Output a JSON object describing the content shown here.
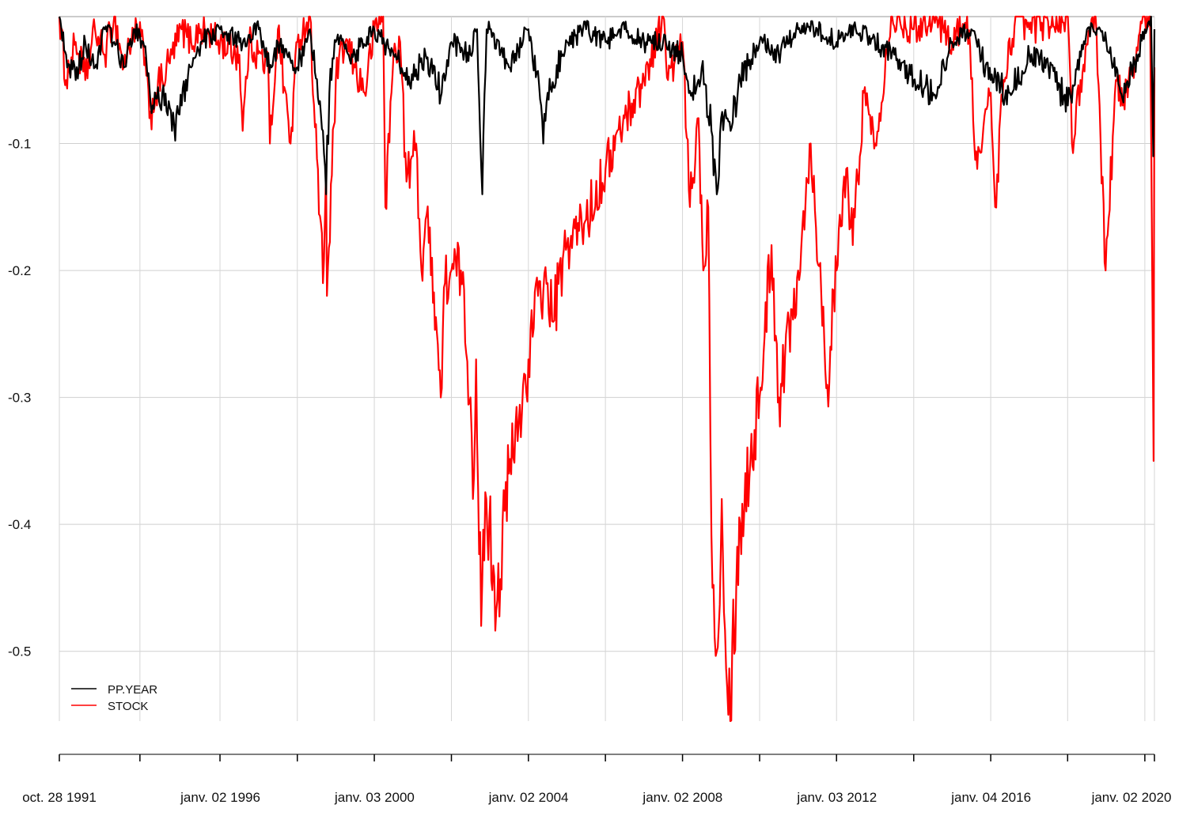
{
  "chart_data": {
    "type": "line",
    "title": "",
    "xlabel": "",
    "ylabel": "",
    "x_range": [
      "1991-10-28",
      "2020-03-31"
    ],
    "ylim": [
      -0.555,
      0
    ],
    "grid": true,
    "legend_position": "bottom-left",
    "y_ticks": [
      {
        "value": -0.1,
        "label": "-0.1"
      },
      {
        "value": -0.2,
        "label": "-0.2"
      },
      {
        "value": -0.3,
        "label": "-0.3"
      },
      {
        "value": -0.4,
        "label": "-0.4"
      },
      {
        "value": -0.5,
        "label": "-0.5"
      }
    ],
    "x_grid_dates": [
      "1991-10-28",
      "1993-11-30",
      "1995-12-29",
      "1997-12-31",
      "1999-12-31",
      "2001-12-31",
      "2003-12-31",
      "2005-12-30",
      "2007-12-31",
      "2009-12-31",
      "2011-12-30",
      "2013-12-31",
      "2015-12-31",
      "2017-12-29",
      "2019-12-31",
      "2020-03-31"
    ],
    "x_tick_labels": [
      {
        "date": "1991-10-28",
        "label": "oct. 28 1991"
      },
      {
        "date": "1996-01-02",
        "label": "janv. 02 1996"
      },
      {
        "date": "2000-01-03",
        "label": "janv. 03 2000"
      },
      {
        "date": "2004-01-02",
        "label": "janv. 02 2004"
      },
      {
        "date": "2008-01-02",
        "label": "janv. 02 2008"
      },
      {
        "date": "2012-01-03",
        "label": "janv. 03 2012"
      },
      {
        "date": "2016-01-04",
        "label": "janv. 04 2016"
      },
      {
        "date": "2020-01-02",
        "label": "janv. 02 2020"
      }
    ],
    "legend": [
      {
        "name": "PP.YEAR",
        "color": "#000000"
      },
      {
        "name": "STOCK",
        "color": "#ff0000"
      }
    ],
    "series": [
      {
        "name": "STOCK",
        "color": "#ff0000",
        "points": [
          [
            "1991-10-28",
            0
          ],
          [
            "1991-12-31",
            -0.05
          ],
          [
            "1992-03-31",
            -0.02
          ],
          [
            "1992-06-30",
            -0.05
          ],
          [
            "1992-09-30",
            -0.01
          ],
          [
            "1992-12-31",
            -0.03
          ],
          [
            "1993-03-31",
            0
          ],
          [
            "1993-06-30",
            -0.04
          ],
          [
            "1993-09-30",
            -0.01
          ],
          [
            "1993-12-31",
            -0.02
          ],
          [
            "1994-02-28",
            -0.08
          ],
          [
            "1994-04-30",
            -0.06
          ],
          [
            "1994-06-30",
            -0.05
          ],
          [
            "1994-09-30",
            -0.03
          ],
          [
            "1994-12-31",
            -0.01
          ],
          [
            "1995-03-31",
            -0.02
          ],
          [
            "1995-06-30",
            -0.01
          ],
          [
            "1995-12-31",
            -0.02
          ],
          [
            "1996-06-30",
            -0.03
          ],
          [
            "1996-07-31",
            -0.09
          ],
          [
            "1996-09-30",
            -0.02
          ],
          [
            "1997-03-31",
            -0.04
          ],
          [
            "1997-04-15",
            -0.1
          ],
          [
            "1997-06-30",
            -0.01
          ],
          [
            "1997-10-28",
            -0.1
          ],
          [
            "1997-12-31",
            -0.02
          ],
          [
            "1998-04-30",
            0
          ],
          [
            "1998-08-31",
            -0.21
          ],
          [
            "1998-09-30",
            -0.12
          ],
          [
            "1998-10-08",
            -0.22
          ],
          [
            "1998-12-31",
            -0.05
          ],
          [
            "1999-03-31",
            -0.02
          ],
          [
            "1999-06-30",
            -0.04
          ],
          [
            "1999-09-30",
            -0.06
          ],
          [
            "1999-12-31",
            -0.01
          ],
          [
            "2000-03-24",
            0
          ],
          [
            "2000-04-14",
            -0.15
          ],
          [
            "2000-06-30",
            -0.03
          ],
          [
            "2000-09-01",
            -0.02
          ],
          [
            "2000-10-31",
            -0.13
          ],
          [
            "2000-12-31",
            -0.11
          ],
          [
            "2001-01-31",
            -0.1
          ],
          [
            "2001-03-22",
            -0.2
          ],
          [
            "2001-04-30",
            -0.16
          ],
          [
            "2001-06-30",
            -0.19
          ],
          [
            "2001-09-21",
            -0.3
          ],
          [
            "2001-10-31",
            -0.21
          ],
          [
            "2001-12-31",
            -0.2
          ],
          [
            "2002-03-31",
            -0.2
          ],
          [
            "2002-06-30",
            -0.3
          ],
          [
            "2002-07-23",
            -0.38
          ],
          [
            "2002-08-22",
            -0.27
          ],
          [
            "2002-10-09",
            -0.48
          ],
          [
            "2002-11-27",
            -0.38
          ],
          [
            "2003-03-11",
            -0.46
          ],
          [
            "2003-06-30",
            -0.36
          ],
          [
            "2003-09-30",
            -0.32
          ],
          [
            "2003-12-31",
            -0.27
          ],
          [
            "2004-03-31",
            -0.22
          ],
          [
            "2004-06-30",
            -0.21
          ],
          [
            "2004-08-12",
            -0.24
          ],
          [
            "2004-12-31",
            -0.18
          ],
          [
            "2005-06-30",
            -0.16
          ],
          [
            "2005-12-31",
            -0.12
          ],
          [
            "2006-06-30",
            -0.08
          ],
          [
            "2006-12-31",
            -0.05
          ],
          [
            "2007-06-30",
            0
          ],
          [
            "2007-08-15",
            -0.05
          ],
          [
            "2007-12-31",
            -0.02
          ],
          [
            "2008-03-10",
            -0.15
          ],
          [
            "2008-05-31",
            -0.08
          ],
          [
            "2008-07-15",
            -0.2
          ],
          [
            "2008-08-31",
            -0.15
          ],
          [
            "2008-10-10",
            -0.45
          ],
          [
            "2008-11-20",
            -0.5
          ],
          [
            "2009-01-06",
            -0.38
          ],
          [
            "2009-03-09",
            -0.55
          ],
          [
            "2009-06-30",
            -0.4
          ],
          [
            "2009-12-31",
            -0.3
          ],
          [
            "2010-04-23",
            -0.18
          ],
          [
            "2010-07-02",
            -0.3
          ],
          [
            "2010-12-31",
            -0.2
          ],
          [
            "2011-04-29",
            -0.1
          ],
          [
            "2011-08-08",
            -0.22
          ],
          [
            "2011-10-03",
            -0.29
          ],
          [
            "2011-12-31",
            -0.2
          ],
          [
            "2012-03-31",
            -0.12
          ],
          [
            "2012-06-01",
            -0.18
          ],
          [
            "2012-09-14",
            -0.06
          ],
          [
            "2012-12-31",
            -0.1
          ],
          [
            "2013-05-31",
            0
          ],
          [
            "2013-12-31",
            -0.01
          ],
          [
            "2014-06-30",
            0
          ],
          [
            "2014-12-31",
            -0.02
          ],
          [
            "2015-05-21",
            0
          ],
          [
            "2015-08-25",
            -0.12
          ],
          [
            "2015-12-31",
            -0.06
          ],
          [
            "2016-02-11",
            -0.15
          ],
          [
            "2016-04-30",
            -0.05
          ],
          [
            "2016-08-31",
            0
          ],
          [
            "2016-12-31",
            -0.01
          ],
          [
            "2017-12-31",
            0
          ],
          [
            "2018-02-08",
            -0.1
          ],
          [
            "2018-04-30",
            -0.05
          ],
          [
            "2018-09-20",
            0
          ],
          [
            "2018-12-24",
            -0.2
          ],
          [
            "2019-03-31",
            -0.05
          ],
          [
            "2019-06-03",
            -0.07
          ],
          [
            "2019-12-31",
            0
          ],
          [
            "2020-02-19",
            0
          ],
          [
            "2020-03-23",
            -0.35
          ],
          [
            "2020-03-31",
            -0.04
          ]
        ]
      },
      {
        "name": "PP.YEAR",
        "color": "#000000",
        "points": [
          [
            "1991-10-28",
            0
          ],
          [
            "1991-12-31",
            -0.03
          ],
          [
            "1992-03-31",
            -0.05
          ],
          [
            "1992-06-30",
            -0.02
          ],
          [
            "1992-09-30",
            -0.04
          ],
          [
            "1992-12-31",
            -0.01
          ],
          [
            "1993-03-31",
            -0.02
          ],
          [
            "1993-06-30",
            -0.04
          ],
          [
            "1993-09-30",
            -0.01
          ],
          [
            "1993-12-31",
            -0.02
          ],
          [
            "1994-03-31",
            -0.07
          ],
          [
            "1994-06-30",
            -0.06
          ],
          [
            "1994-09-30",
            -0.09
          ],
          [
            "1994-12-31",
            -0.07
          ],
          [
            "1995-03-31",
            -0.04
          ],
          [
            "1995-06-30",
            -0.02
          ],
          [
            "1995-12-31",
            -0.01
          ],
          [
            "1996-06-30",
            -0.02
          ],
          [
            "1996-12-31",
            -0.01
          ],
          [
            "1997-04-30",
            -0.04
          ],
          [
            "1997-06-30",
            -0.02
          ],
          [
            "1997-12-31",
            -0.04
          ],
          [
            "1998-04-30",
            -0.01
          ],
          [
            "1998-08-31",
            -0.09
          ],
          [
            "1998-09-30",
            -0.14
          ],
          [
            "1998-10-31",
            -0.06
          ],
          [
            "1998-12-31",
            -0.02
          ],
          [
            "1999-06-30",
            -0.03
          ],
          [
            "1999-12-31",
            -0.01
          ],
          [
            "2000-06-30",
            -0.03
          ],
          [
            "2000-12-31",
            -0.05
          ],
          [
            "2001-04-30",
            -0.03
          ],
          [
            "2001-09-30",
            -0.06
          ],
          [
            "2001-12-31",
            -0.02
          ],
          [
            "2002-06-30",
            -0.03
          ],
          [
            "2002-08-31",
            -0.01
          ],
          [
            "2002-10-20",
            -0.14
          ],
          [
            "2002-11-30",
            -0.01
          ],
          [
            "2002-12-31",
            -0.01
          ],
          [
            "2003-06-30",
            -0.04
          ],
          [
            "2003-12-31",
            -0.01
          ],
          [
            "2004-04-30",
            -0.07
          ],
          [
            "2004-05-20",
            -0.1
          ],
          [
            "2004-06-30",
            -0.06
          ],
          [
            "2004-12-31",
            -0.02
          ],
          [
            "2005-06-30",
            -0.01
          ],
          [
            "2005-12-31",
            -0.02
          ],
          [
            "2006-06-30",
            -0.01
          ],
          [
            "2006-12-31",
            -0.02
          ],
          [
            "2007-06-30",
            -0.02
          ],
          [
            "2007-12-31",
            -0.03
          ],
          [
            "2008-03-31",
            -0.06
          ],
          [
            "2008-06-30",
            -0.04
          ],
          [
            "2008-09-30",
            -0.09
          ],
          [
            "2008-11-20",
            -0.14
          ],
          [
            "2008-12-31",
            -0.08
          ],
          [
            "2009-03-31",
            -0.09
          ],
          [
            "2009-06-30",
            -0.05
          ],
          [
            "2009-12-31",
            -0.02
          ],
          [
            "2010-06-30",
            -0.03
          ],
          [
            "2010-12-31",
            -0.01
          ],
          [
            "2011-06-30",
            -0.01
          ],
          [
            "2011-12-31",
            -0.02
          ],
          [
            "2012-06-30",
            -0.01
          ],
          [
            "2013-06-30",
            -0.03
          ],
          [
            "2013-12-31",
            -0.05
          ],
          [
            "2014-06-30",
            -0.06
          ],
          [
            "2014-12-31",
            -0.02
          ],
          [
            "2015-06-30",
            -0.01
          ],
          [
            "2015-12-31",
            -0.05
          ],
          [
            "2016-06-30",
            -0.06
          ],
          [
            "2016-12-31",
            -0.03
          ],
          [
            "2017-06-30",
            -0.04
          ],
          [
            "2017-12-31",
            -0.07
          ],
          [
            "2018-06-30",
            -0.01
          ],
          [
            "2018-12-31",
            -0.02
          ],
          [
            "2019-06-30",
            -0.06
          ],
          [
            "2019-12-31",
            -0.01
          ],
          [
            "2020-02-28",
            0
          ],
          [
            "2020-03-20",
            -0.11
          ],
          [
            "2020-03-31",
            -0.01
          ]
        ]
      }
    ]
  }
}
